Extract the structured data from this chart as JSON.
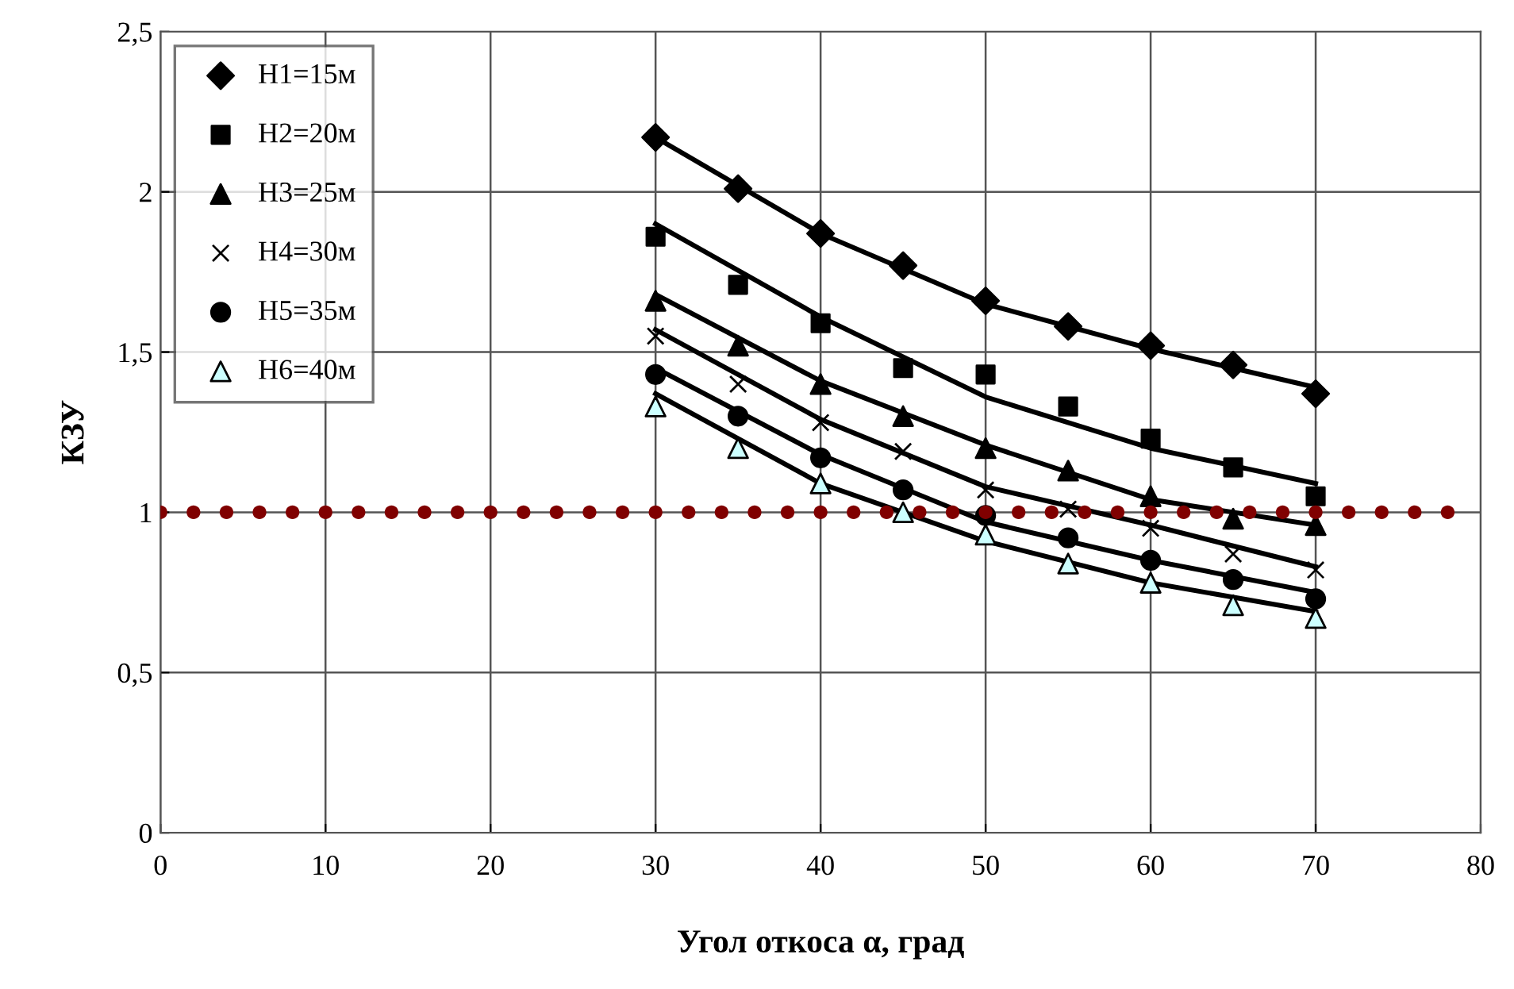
{
  "chart_data": {
    "type": "scatter",
    "xlabel": "Угол откоса α, град",
    "ylabel": "КЗУ",
    "xlim": [
      0,
      80
    ],
    "xticks": [
      0,
      10,
      20,
      30,
      40,
      50,
      60,
      70,
      80
    ],
    "ylim": [
      0,
      2.5
    ],
    "yticks": [
      0,
      {
        "value": 0.5,
        "label": "0,5"
      },
      1,
      {
        "value": 1.5,
        "label": "1,5"
      },
      2,
      {
        "value": 2.5,
        "label": "2,5"
      }
    ],
    "grid": true,
    "legend": "top left",
    "x": [
      30,
      35,
      40,
      45,
      50,
      55,
      60,
      65,
      70
    ],
    "series": [
      {
        "name": "H1=15м",
        "color": "#000000",
        "marker": "diamond",
        "values": [
          2.17,
          2.01,
          1.87,
          1.77,
          1.66,
          1.58,
          1.52,
          1.46,
          1.37
        ]
      },
      {
        "name": "H2=20м",
        "color": "#000000",
        "marker": "square",
        "values": [
          1.86,
          1.71,
          1.59,
          1.45,
          1.43,
          1.33,
          1.23,
          1.14,
          1.05
        ]
      },
      {
        "name": "H3=25м",
        "color": "#000000",
        "marker": "triangle",
        "values": [
          1.66,
          1.52,
          1.4,
          1.3,
          1.2,
          1.13,
          1.05,
          0.98,
          0.96
        ]
      },
      {
        "name": "H4=30м",
        "color": "#000000",
        "marker": "cross",
        "values": [
          1.55,
          1.4,
          1.28,
          1.19,
          1.07,
          1.01,
          0.95,
          0.87,
          0.82
        ]
      },
      {
        "name": "H5=35м",
        "color": "#000000",
        "marker": "circle",
        "values": [
          1.43,
          1.3,
          1.17,
          1.07,
          0.99,
          0.92,
          0.85,
          0.79,
          0.73
        ]
      },
      {
        "name": "H6=40м",
        "color": "#ccffff",
        "marker": "triangle",
        "values": [
          1.33,
          1.2,
          1.09,
          1.0,
          0.93,
          0.84,
          0.78,
          0.71,
          0.67
        ]
      },
      {
        "type": "line",
        "color": "#000000",
        "x": [
          30,
          40,
          50,
          60,
          70
        ],
        "values": [
          2.17,
          1.87,
          1.65,
          1.51,
          1.39
        ]
      },
      {
        "type": "line",
        "color": "#000000",
        "x": [
          30,
          40,
          50,
          60,
          70
        ],
        "values": [
          1.9,
          1.61,
          1.36,
          1.2,
          1.09
        ]
      },
      {
        "type": "line",
        "color": "#000000",
        "x": [
          30,
          40,
          50,
          60,
          70
        ],
        "values": [
          1.68,
          1.41,
          1.21,
          1.04,
          0.96
        ]
      },
      {
        "type": "line",
        "color": "#000000",
        "x": [
          30,
          40,
          50,
          60,
          70
        ],
        "values": [
          1.57,
          1.29,
          1.08,
          0.96,
          0.83
        ]
      },
      {
        "type": "line",
        "color": "#000000",
        "x": [
          30,
          40,
          50,
          60,
          70
        ],
        "values": [
          1.45,
          1.18,
          0.97,
          0.85,
          0.75
        ]
      },
      {
        "type": "line",
        "color": "#000000",
        "x": [
          30,
          40,
          50,
          60,
          70
        ],
        "values": [
          1.37,
          1.09,
          0.91,
          0.78,
          0.69
        ]
      },
      {
        "type": "scatter",
        "color": "#800000",
        "marker": "circle",
        "x": [
          0,
          2,
          4,
          6,
          8,
          10,
          12,
          14,
          16,
          18,
          20,
          22,
          24,
          26,
          28,
          30,
          32,
          34,
          36,
          38,
          40,
          42,
          44,
          46,
          48,
          50,
          52,
          54,
          56,
          58,
          60,
          62,
          64,
          66,
          68,
          70,
          72,
          74,
          76,
          78
        ],
        "values": [
          1,
          1,
          1,
          1,
          1,
          1,
          1,
          1,
          1,
          1,
          1,
          1,
          1,
          1,
          1,
          1,
          1,
          1,
          1,
          1,
          1,
          1,
          1,
          1,
          1,
          1,
          1,
          1,
          1,
          1,
          1,
          1,
          1,
          1,
          1,
          1,
          1,
          1,
          1,
          1
        ]
      }
    ]
  }
}
